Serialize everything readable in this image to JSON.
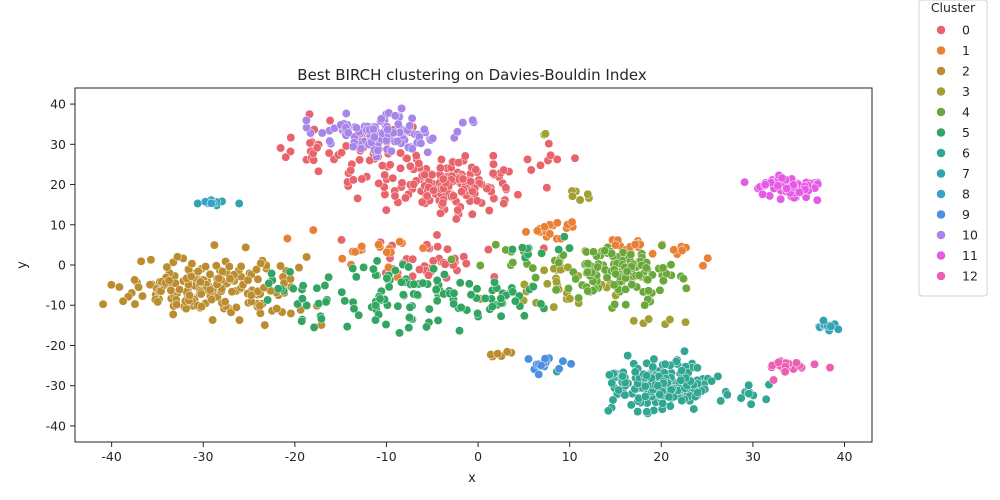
{
  "chart_data": {
    "type": "scatter",
    "title": "Best BIRCH clustering on Davies-Bouldin Index",
    "xlabel": "x",
    "ylabel": "y",
    "xlim": [
      -44,
      43
    ],
    "ylim": [
      -44,
      44
    ],
    "xticks": [
      -40,
      -30,
      -20,
      -10,
      0,
      10,
      20,
      30,
      40
    ],
    "yticks": [
      -40,
      -30,
      -20,
      -10,
      0,
      10,
      20,
      30,
      40
    ],
    "grid": false,
    "legend": {
      "title": "Cluster",
      "placement": "outside-right-top"
    },
    "series": [
      {
        "name": "0",
        "color": "#e8636a",
        "clusters": [
          {
            "cx": -3,
            "cy": 20,
            "sx": 4.5,
            "sy": 3.8,
            "n": 170
          },
          {
            "cx": -13,
            "cy": 27,
            "sx": 4.5,
            "sy": 3.5,
            "n": 45
          },
          {
            "cx": -6,
            "cy": 1,
            "sx": 5,
            "sy": 3,
            "n": 40
          },
          {
            "cx": -19,
            "cy": 30,
            "sx": 1.5,
            "sy": 4,
            "n": 10
          },
          {
            "cx": 6,
            "cy": 26,
            "sx": 2,
            "sy": 2,
            "n": 8
          }
        ]
      },
      {
        "name": "1",
        "color": "#e98035",
        "clusters": [
          {
            "cx": 8,
            "cy": 9,
            "sx": 2,
            "sy": 1.2,
            "n": 20
          },
          {
            "cx": 17,
            "cy": 5,
            "sx": 3,
            "sy": 1.5,
            "n": 15
          },
          {
            "cx": -12,
            "cy": 3,
            "sx": 4,
            "sy": 3,
            "n": 20
          },
          {
            "cx": 22,
            "cy": 3,
            "sx": 1.5,
            "sy": 1.5,
            "n": 8
          }
        ]
      },
      {
        "name": "2",
        "color": "#bb8d2f",
        "clusters": [
          {
            "cx": -31,
            "cy": -6,
            "sx": 4.5,
            "sy": 4,
            "n": 160
          },
          {
            "cx": -23,
            "cy": -6,
            "sx": 2.5,
            "sy": 5,
            "n": 40
          },
          {
            "cx": 3,
            "cy": -22,
            "sx": 1,
            "sy": 0.5,
            "n": 6
          }
        ]
      },
      {
        "name": "3",
        "color": "#a2a032",
        "clusters": [
          {
            "cx": 8,
            "cy": -5,
            "sx": 4,
            "sy": 3.5,
            "n": 30
          },
          {
            "cx": 20,
            "cy": -14,
            "sx": 2,
            "sy": 0.5,
            "n": 6
          },
          {
            "cx": 11,
            "cy": 18,
            "sx": 1.5,
            "sy": 2,
            "n": 6
          },
          {
            "cx": 7.5,
            "cy": 32.5,
            "sx": 0.3,
            "sy": 0.2,
            "n": 2
          }
        ]
      },
      {
        "name": "4",
        "color": "#6aa839",
        "clusters": [
          {
            "cx": 16,
            "cy": -2,
            "sx": 3.5,
            "sy": 3.5,
            "n": 130
          },
          {
            "cx": 5,
            "cy": 1,
            "sx": 4,
            "sy": 3,
            "n": 15
          }
        ]
      },
      {
        "name": "5",
        "color": "#32a561",
        "clusters": [
          {
            "cx": -8,
            "cy": -8,
            "sx": 6,
            "sy": 4.5,
            "n": 90
          },
          {
            "cx": 2,
            "cy": -8,
            "sx": 3,
            "sy": 3,
            "n": 25
          },
          {
            "cx": -20,
            "cy": -10,
            "sx": 2.5,
            "sy": 5,
            "n": 20
          },
          {
            "cx": 7,
            "cy": 4,
            "sx": 2,
            "sy": 1.5,
            "n": 10
          }
        ]
      },
      {
        "name": "6",
        "color": "#31a693",
        "clusters": [
          {
            "cx": 20,
            "cy": -30,
            "sx": 3.5,
            "sy": 3.5,
            "n": 200
          },
          {
            "cx": 30,
            "cy": -32,
            "sx": 1,
            "sy": 1.5,
            "n": 10
          }
        ]
      },
      {
        "name": "7",
        "color": "#33a2b5",
        "clusters": [
          {
            "cx": 38,
            "cy": -15,
            "sx": 0.8,
            "sy": 0.6,
            "n": 14
          },
          {
            "cx": -29,
            "cy": 15.5,
            "sx": 1.3,
            "sy": 0.5,
            "n": 10
          }
        ]
      },
      {
        "name": "8",
        "color": "#37a1c9",
        "clusters": [
          {
            "cx": -29.5,
            "cy": 15.5,
            "sx": 0.5,
            "sy": 0.3,
            "n": 3
          }
        ]
      },
      {
        "name": "9",
        "color": "#4b90e0",
        "clusters": [
          {
            "cx": 7,
            "cy": -25,
            "sx": 1,
            "sy": 1.5,
            "n": 14
          }
        ]
      },
      {
        "name": "10",
        "color": "#a885e8",
        "clusters": [
          {
            "cx": -11,
            "cy": 33,
            "sx": 4.5,
            "sy": 3,
            "n": 110
          }
        ]
      },
      {
        "name": "11",
        "color": "#e65be6",
        "clusters": [
          {
            "cx": 34,
            "cy": 19.5,
            "sx": 2,
            "sy": 1.4,
            "n": 80
          }
        ]
      },
      {
        "name": "12",
        "color": "#ec60b4",
        "clusters": [
          {
            "cx": 34,
            "cy": -25,
            "sx": 1.6,
            "sy": 1,
            "n": 28
          }
        ]
      }
    ]
  }
}
